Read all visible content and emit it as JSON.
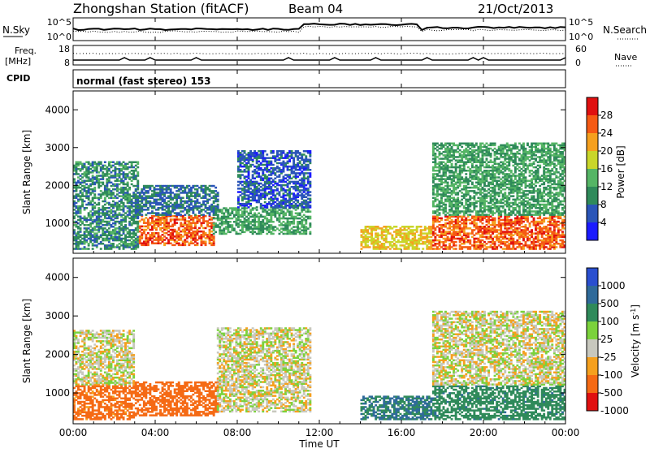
{
  "header": {
    "title": "Zhongshan Station (fitACF)",
    "beam": "Beam 04",
    "date": "21/Oct/2013"
  },
  "summary_panels": {
    "nsky_label": "N.Sky",
    "nsky_ticks": [
      "10^5",
      "10^0"
    ],
    "nsearch_label": "N.Search",
    "nsearch_ticks": [
      "10^5",
      "10^0"
    ],
    "freq_label_1": "Freq.",
    "freq_label_2": "[MHz]",
    "freq_ticks": [
      "18",
      "8"
    ],
    "nave_label": "Nave",
    "nave_ticks": [
      "60",
      "0"
    ],
    "cpid_label": "CPID",
    "cpid_value": "normal (fast stereo) 153"
  },
  "colors": {
    "power_scale": [
      "#1b1bff",
      "#2a55b8",
      "#2f8a5a",
      "#55b565",
      "#c9d62a",
      "#f5a01e",
      "#f55a14",
      "#e01010"
    ],
    "velocity_scale": [
      "#2a4fd0",
      "#2f6a9a",
      "#2f8a5a",
      "#7bd23c",
      "#c8c8be",
      "#f5a01e",
      "#f56a14",
      "#e01010"
    ],
    "empty": "#ffffff"
  },
  "chart_data": [
    {
      "type": "heatmap",
      "panel": "power",
      "ylabel": "Slant Range [km]",
      "ylim": [
        200,
        4500
      ],
      "yticks": [
        "1000",
        "2000",
        "3000",
        "4000"
      ],
      "xlim": [
        "00:00",
        "24:00"
      ],
      "colorbar": {
        "label": "Power [dB]",
        "range": [
          0,
          32
        ],
        "tick_labels": [
          "28",
          "24",
          "20",
          "16",
          "12",
          "8",
          "4"
        ]
      },
      "echo_regions": [
        {
          "start_hour": 0.0,
          "end_hour": 3.2,
          "range_km": [
            300,
            2600
          ],
          "value": 10
        },
        {
          "start_hour": 3.2,
          "end_hour": 6.8,
          "range_km": [
            400,
            1200
          ],
          "value": 26
        },
        {
          "start_hour": 3.0,
          "end_hour": 7.0,
          "range_km": [
            1200,
            2000
          ],
          "value": 8
        },
        {
          "start_hour": 6.8,
          "end_hour": 11.5,
          "range_km": [
            700,
            1400
          ],
          "value": 12
        },
        {
          "start_hour": 8.0,
          "end_hour": 11.5,
          "range_km": [
            1400,
            2900
          ],
          "value": 6
        },
        {
          "start_hour": 14.0,
          "end_hour": 17.5,
          "range_km": [
            300,
            900
          ],
          "value": 20
        },
        {
          "start_hour": 17.5,
          "end_hour": 24.0,
          "range_km": [
            300,
            1200
          ],
          "value": 26
        },
        {
          "start_hour": 17.5,
          "end_hour": 24.0,
          "range_km": [
            1200,
            3100
          ],
          "value": 12
        }
      ]
    },
    {
      "type": "heatmap",
      "panel": "velocity",
      "xlabel": "Time UT",
      "ylabel": "Slant Range [km]",
      "ylim": [
        200,
        4500
      ],
      "yticks": [
        "1000",
        "2000",
        "3000",
        "4000"
      ],
      "xticks": [
        "00:00",
        "04:00",
        "08:00",
        "12:00",
        "16:00",
        "20:00",
        "00:00"
      ],
      "xlim": [
        "00:00",
        "24:00"
      ],
      "colorbar": {
        "label": "Velocity [m s^-1]",
        "tick_labels": [
          "1000",
          "500",
          "100",
          "25",
          "-25",
          "-100",
          "-500",
          "-1000"
        ]
      },
      "echo_regions": [
        {
          "start_hour": 0.0,
          "end_hour": 3.0,
          "range_km": [
            1200,
            2600
          ],
          "value": 0
        },
        {
          "start_hour": 0.0,
          "end_hour": 3.0,
          "range_km": [
            300,
            1200
          ],
          "value": -150
        },
        {
          "start_hour": 3.0,
          "end_hour": 7.0,
          "range_km": [
            400,
            1300
          ],
          "value": -200
        },
        {
          "start_hour": 7.0,
          "end_hour": 11.5,
          "range_km": [
            500,
            2700
          ],
          "value": 0
        },
        {
          "start_hour": 14.0,
          "end_hour": 17.5,
          "range_km": [
            300,
            900
          ],
          "value": 300
        },
        {
          "start_hour": 17.5,
          "end_hour": 24.0,
          "range_km": [
            300,
            1200
          ],
          "value": 250
        },
        {
          "start_hour": 17.5,
          "end_hour": 24.0,
          "range_km": [
            1200,
            3100
          ],
          "value": 0
        }
      ]
    }
  ]
}
